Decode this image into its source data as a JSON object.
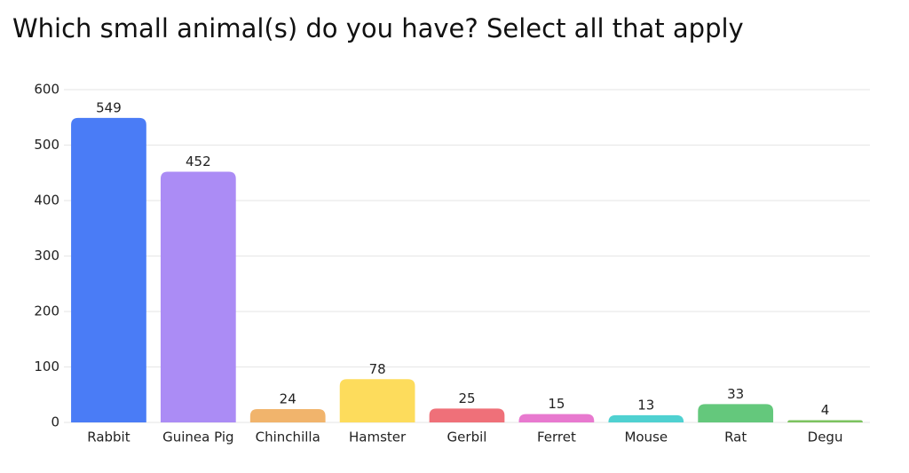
{
  "chart_data": {
    "type": "bar",
    "title": "Which small animal(s) do you have? Select all that apply",
    "categories": [
      "Rabbit",
      "Guinea Pig",
      "Chinchilla",
      "Hamster",
      "Gerbil",
      "Ferret",
      "Mouse",
      "Rat",
      "Degu"
    ],
    "values": [
      549,
      452,
      24,
      78,
      25,
      15,
      13,
      33,
      4
    ],
    "colors": [
      "#4a7cf6",
      "#ab8cf5",
      "#f1b46c",
      "#fddc5c",
      "#ef7079",
      "#e879cf",
      "#4fd1d1",
      "#64c87c",
      "#7cc35f"
    ],
    "ylim": [
      0,
      600
    ],
    "yticks": [
      0,
      100,
      200,
      300,
      400,
      500,
      600
    ],
    "grid": true
  }
}
